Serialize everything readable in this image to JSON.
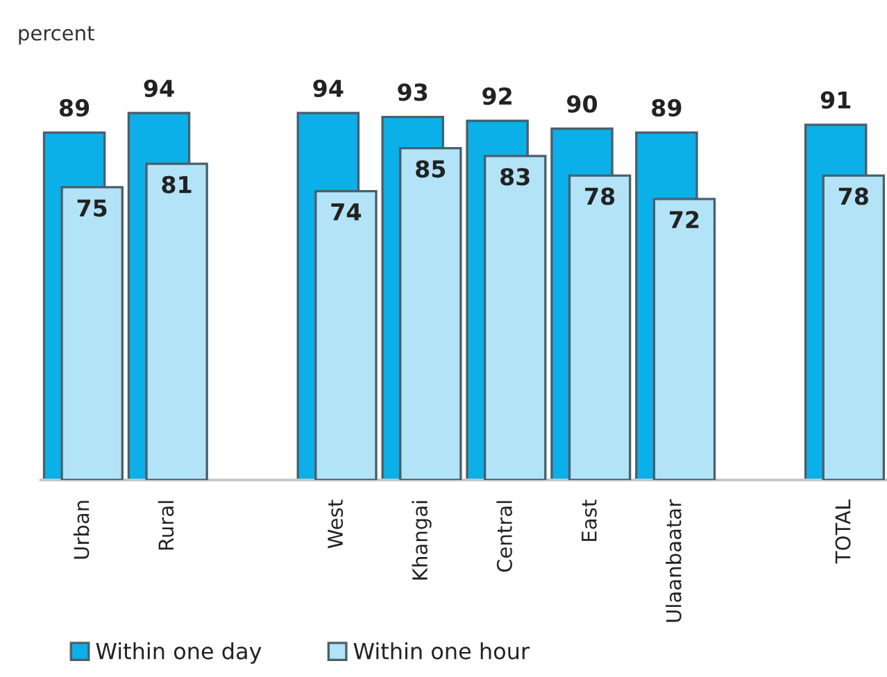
{
  "chart_data": {
    "type": "bar",
    "ylabel": "percent",
    "categories": [
      "Urban",
      "Rural",
      null,
      "West",
      "Khangai",
      "Central",
      "East",
      "Ulaanbaatar",
      null,
      "TOTAL"
    ],
    "series": [
      {
        "name": "Within one day",
        "color": "#0cb0e9",
        "values": [
          89,
          94,
          null,
          94,
          93,
          92,
          90,
          89,
          null,
          91
        ]
      },
      {
        "name": "Within one hour",
        "color": "#b3e3f7",
        "values": [
          75,
          81,
          null,
          74,
          85,
          83,
          78,
          72,
          null,
          78
        ]
      }
    ],
    "data_labels": true,
    "legend": "bottom left"
  }
}
